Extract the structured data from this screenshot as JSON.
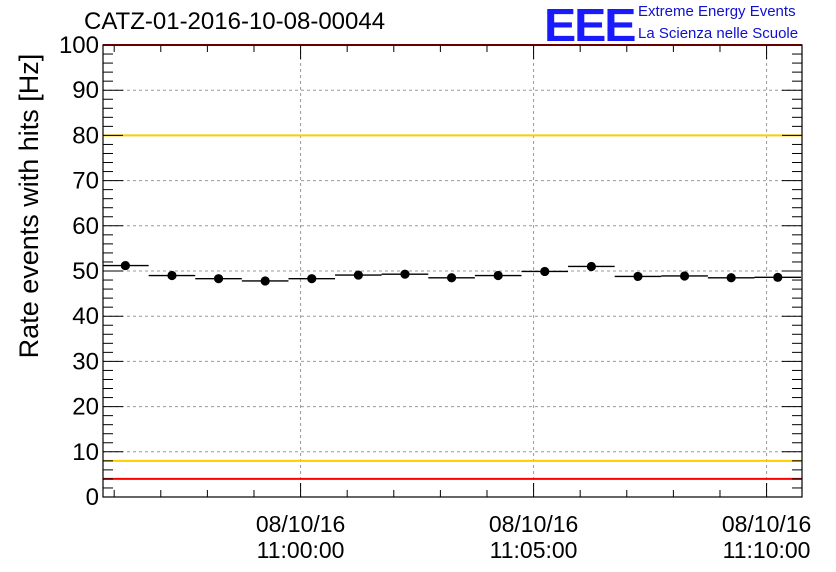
{
  "header": {
    "title": "CATZ-01-2016-10-08-00044",
    "logo_mark": "EEE",
    "logo_line1": "Extreme Energy Events",
    "logo_line2": "La Scienza nelle Scuole"
  },
  "chart_data": {
    "type": "scatter",
    "title": "CATZ-01-2016-10-08-00044",
    "xlabel": "",
    "ylabel": "Rate events with hits [Hz]",
    "ylim": [
      0,
      100
    ],
    "yticks": [
      0,
      10,
      20,
      30,
      40,
      50,
      60,
      70,
      80,
      90,
      100
    ],
    "xlim_minutes": [
      -4.24,
      10.76
    ],
    "xticks": [
      {
        "at_minutes": 0,
        "date": "08/10/16",
        "time": "11:00:00"
      },
      {
        "at_minutes": 5,
        "date": "08/10/16",
        "time": "11:05:00"
      },
      {
        "at_minutes": 10,
        "date": "08/10/16",
        "time": "11:10:00"
      }
    ],
    "grid": true,
    "bin_width_minutes": 1,
    "points_minutes": [
      -3.76,
      -2.76,
      -1.76,
      -0.76,
      0.24,
      1.24,
      2.24,
      3.24,
      4.24,
      5.24,
      6.24,
      7.24,
      8.24,
      9.24,
      10.24
    ],
    "values": [
      51.2,
      49.0,
      48.3,
      47.8,
      48.3,
      49.1,
      49.3,
      48.5,
      49.0,
      49.9,
      51.0,
      48.8,
      48.9,
      48.5,
      48.6
    ],
    "reference_lines": [
      {
        "value": 100,
        "color": "#ff0000"
      },
      {
        "value": 80,
        "color": "#ffcc00"
      },
      {
        "value": 8,
        "color": "#ffcc00"
      },
      {
        "value": 4,
        "color": "#ff0000"
      }
    ]
  }
}
